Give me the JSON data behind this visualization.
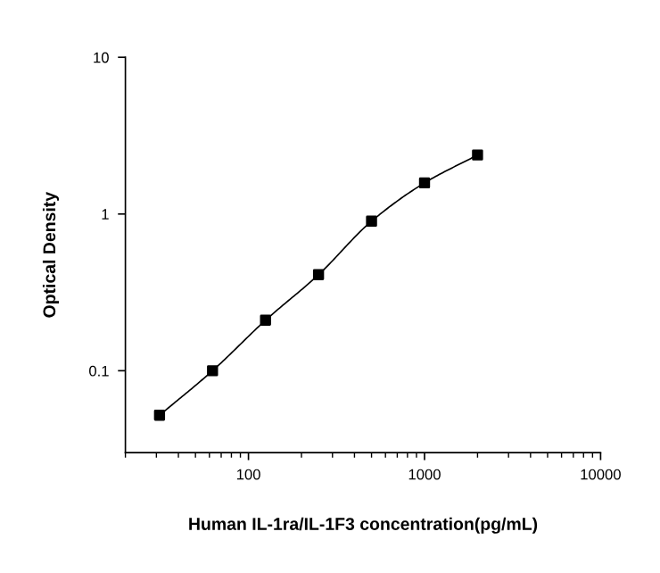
{
  "chart_data": {
    "type": "line",
    "xlabel": "Human IL-1ra/IL-1F3 concentration(pg/mL)",
    "ylabel": "Optical Density",
    "log": "xy",
    "xlim": [
      20,
      10000
    ],
    "ylim": [
      0.03,
      10
    ],
    "xticks": [
      100,
      1000,
      10000
    ],
    "yticks": [
      0.1,
      1,
      10
    ],
    "marker": "square",
    "line_style": "solid",
    "grid": false,
    "series": [
      {
        "color": "#000000",
        "x": [
          31.25,
          62.5,
          125,
          250,
          500,
          1000,
          2000
        ],
        "values": [
          0.052,
          0.1,
          0.21,
          0.41,
          0.9,
          1.58,
          2.38
        ]
      }
    ]
  }
}
